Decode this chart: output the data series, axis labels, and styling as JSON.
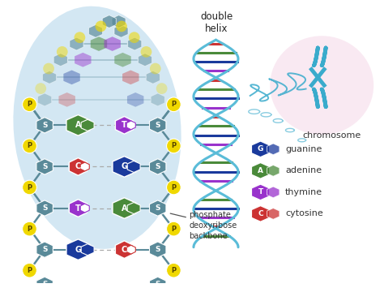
{
  "bg_color": "#ffffff",
  "ladder_bg": "#c5e0f0",
  "base_pairs": [
    {
      "left": "G",
      "right": "C",
      "lcolor": "#1a3a9c",
      "rcolor": "#cc3333"
    },
    {
      "left": "T",
      "right": "A",
      "lcolor": "#9933cc",
      "rcolor": "#4a8a3a"
    },
    {
      "left": "C",
      "right": "G",
      "lcolor": "#cc3333",
      "rcolor": "#1a3a9c"
    },
    {
      "left": "A",
      "right": "T",
      "lcolor": "#4a8a3a",
      "rcolor": "#9933cc"
    }
  ],
  "sugar_color": "#5a8a99",
  "phosphate_color": "#f0d800",
  "label_double_helix": "double\nhelix",
  "label_phosphate": "phosphate\ndeoxyribose\nbackbone",
  "label_chromosome": "chromosome",
  "legend": [
    {
      "letter": "G",
      "label": "guanine",
      "color": "#1a3a9c",
      "ext_color": "#2255bb"
    },
    {
      "letter": "A",
      "label": "adenine",
      "color": "#4a8a3a",
      "ext_color": "#5aaa4a"
    },
    {
      "letter": "T",
      "label": "thymine",
      "color": "#9933cc",
      "ext_color": "#aa44dd"
    },
    {
      "letter": "C",
      "label": "cytosine",
      "color": "#cc3333",
      "ext_color": "#dd5544"
    }
  ],
  "helix_color": "#5abcd8",
  "chromosome_color": "#3aabcc",
  "chromosome_bg": "#f5d8e8"
}
